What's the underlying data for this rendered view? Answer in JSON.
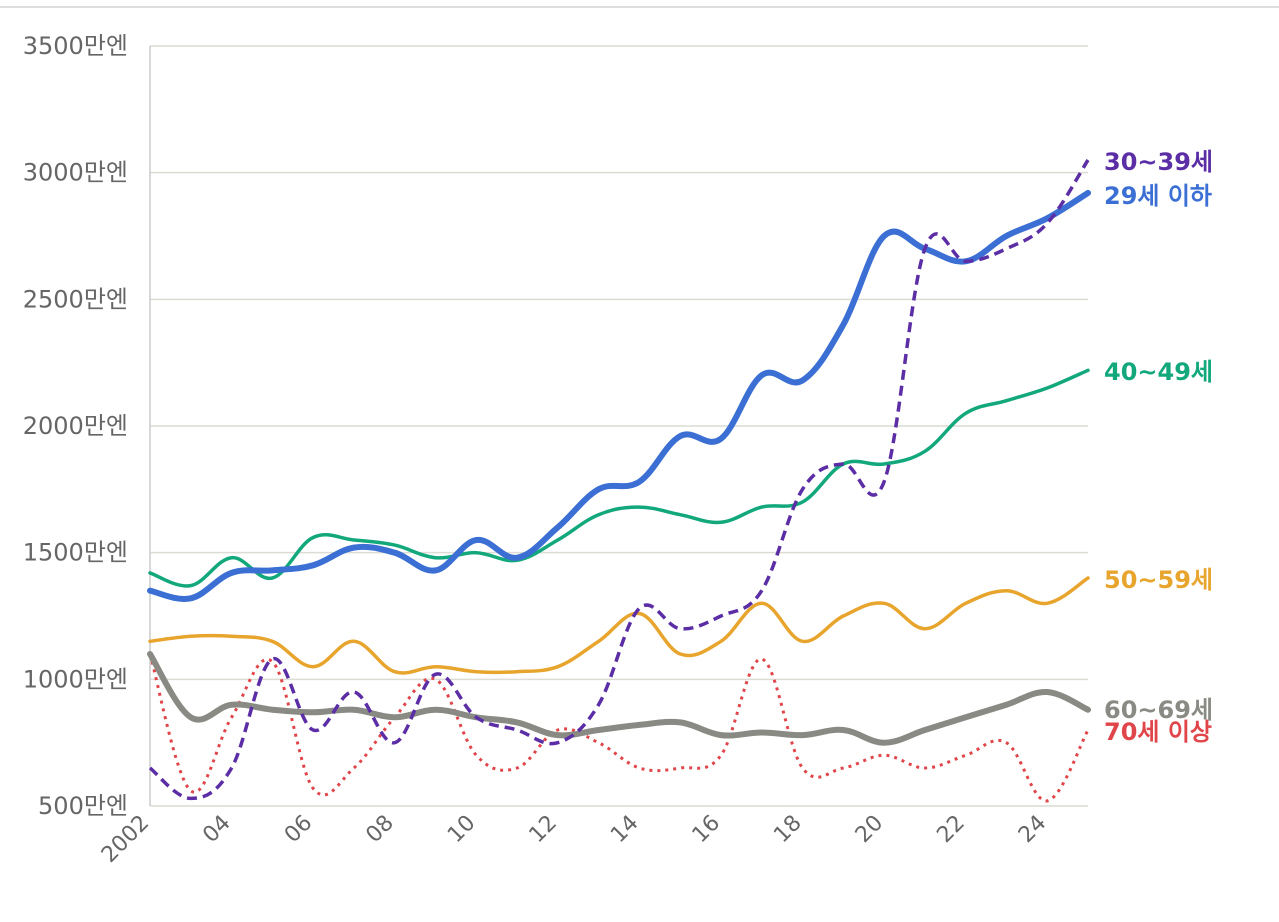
{
  "chart_data": {
    "type": "line",
    "title": "",
    "xlabel": "",
    "ylabel": "",
    "ylim": [
      500,
      3500
    ],
    "xlim": [
      2002,
      2025
    ],
    "grid": "horizontal",
    "legend": "inline-right-end",
    "y_ticks": [
      500,
      1000,
      1500,
      2000,
      2500,
      3000,
      3500
    ],
    "y_tick_labels": [
      "500만엔",
      "1000만엔",
      "1500만엔",
      "2000만엔",
      "2500만엔",
      "3000만엔",
      "3500만엔"
    ],
    "x_ticks": [
      2002,
      2004,
      2006,
      2008,
      2010,
      2012,
      2014,
      2016,
      2018,
      2020,
      2022,
      2024
    ],
    "x_tick_labels": [
      "2002",
      "04",
      "06",
      "08",
      "10",
      "12",
      "14",
      "16",
      "18",
      "20",
      "22",
      "24"
    ],
    "x": [
      2002,
      2003,
      2004,
      2005,
      2006,
      2007,
      2008,
      2009,
      2010,
      2011,
      2012,
      2013,
      2014,
      2015,
      2016,
      2017,
      2018,
      2019,
      2020,
      2021,
      2022,
      2023,
      2024,
      2025
    ],
    "series": [
      {
        "name": "30~39세",
        "color": "#5b2ea6",
        "style": "dashed",
        "values": [
          650,
          530,
          650,
          1080,
          800,
          950,
          750,
          1020,
          850,
          800,
          750,
          900,
          1280,
          1200,
          1250,
          1350,
          1750,
          1850,
          1780,
          2700,
          2650,
          2700,
          2800,
          3050
        ]
      },
      {
        "name": "29세 이하",
        "color": "#3b6fd4",
        "style": "solid-thick",
        "values": [
          1350,
          1320,
          1420,
          1430,
          1450,
          1520,
          1500,
          1430,
          1550,
          1480,
          1600,
          1750,
          1780,
          1960,
          1950,
          2200,
          2180,
          2400,
          2750,
          2700,
          2650,
          2750,
          2820,
          2920
        ]
      },
      {
        "name": "40~49세",
        "color": "#12a87c",
        "style": "solid",
        "values": [
          1420,
          1370,
          1480,
          1400,
          1560,
          1550,
          1530,
          1480,
          1500,
          1470,
          1550,
          1650,
          1680,
          1650,
          1620,
          1680,
          1700,
          1850,
          1850,
          1900,
          2050,
          2100,
          2150,
          2220
        ]
      },
      {
        "name": "50~59세",
        "color": "#e8a52e",
        "style": "solid",
        "values": [
          1150,
          1170,
          1170,
          1150,
          1050,
          1150,
          1030,
          1050,
          1030,
          1030,
          1050,
          1150,
          1260,
          1100,
          1150,
          1300,
          1150,
          1250,
          1300,
          1200,
          1300,
          1350,
          1300,
          1400
        ]
      },
      {
        "name": "60~69세",
        "color": "#8a8a84",
        "style": "solid-thick",
        "values": [
          1100,
          850,
          900,
          880,
          870,
          880,
          850,
          880,
          850,
          830,
          780,
          800,
          820,
          830,
          780,
          790,
          780,
          800,
          750,
          800,
          850,
          900,
          950,
          880
        ]
      },
      {
        "name": "70세 이상",
        "color": "#e0454a",
        "style": "dotted",
        "values": [
          1100,
          560,
          850,
          1070,
          570,
          650,
          850,
          1000,
          700,
          650,
          800,
          750,
          650,
          650,
          700,
          1080,
          650,
          650,
          700,
          650,
          700,
          750,
          520,
          800
        ]
      }
    ]
  }
}
